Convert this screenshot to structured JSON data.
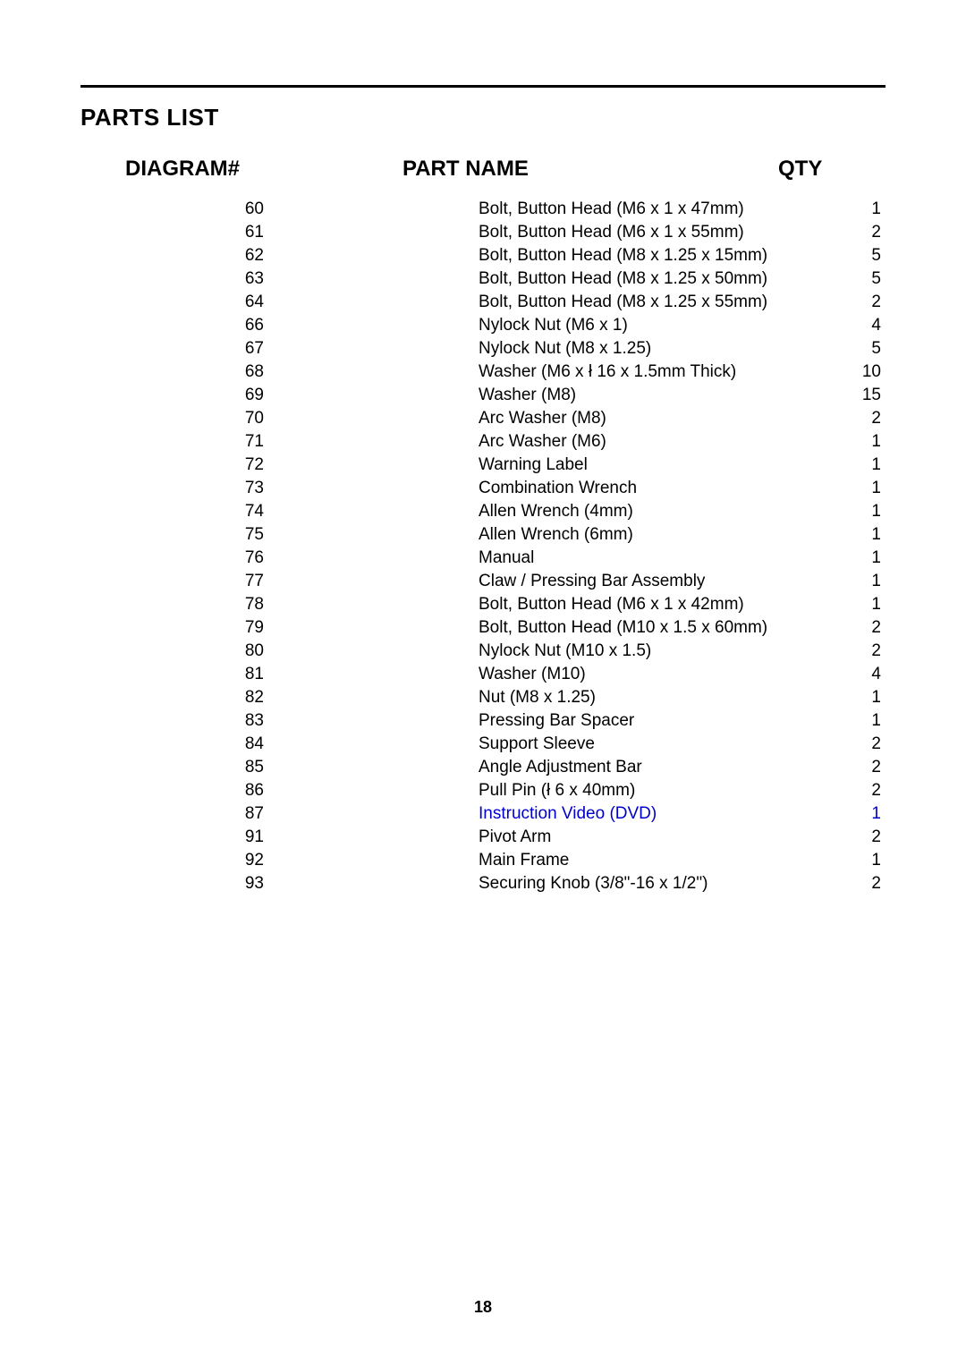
{
  "section_title": "PARTS LIST",
  "headers": {
    "diagram": "DIAGRAM#",
    "part": "PART NAME",
    "qty": "QTY"
  },
  "page_number": "18",
  "link_color": "#0000cc",
  "rows": [
    {
      "diagram": "60",
      "part": "Bolt, Button Head (M6 x 1 x 47mm)",
      "qty": "1",
      "link": false
    },
    {
      "diagram": "61",
      "part": "Bolt, Button Head (M6 x 1 x 55mm)",
      "qty": "2",
      "link": false
    },
    {
      "diagram": "62",
      "part": "Bolt, Button Head (M8 x 1.25 x 15mm)",
      "qty": "5",
      "link": false
    },
    {
      "diagram": "63",
      "part": "Bolt, Button Head (M8 x 1.25 x 50mm)",
      "qty": "5",
      "link": false
    },
    {
      "diagram": "64",
      "part": "Bolt, Button Head (M8 x 1.25 x 55mm)",
      "qty": "2",
      "link": false
    },
    {
      "diagram": "66",
      "part": "Nylock Nut (M6 x 1)",
      "qty": "4",
      "link": false
    },
    {
      "diagram": "67",
      "part": "Nylock Nut (M8 x 1.25)",
      "qty": "5",
      "link": false
    },
    {
      "diagram": "68",
      "part": "Washer (M6 x ł 16 x 1.5mm Thick)",
      "qty": "10",
      "link": false
    },
    {
      "diagram": "69",
      "part": "Washer (M8)",
      "qty": "15",
      "link": false
    },
    {
      "diagram": "70",
      "part": "Arc Washer (M8)",
      "qty": "2",
      "link": false
    },
    {
      "diagram": "71",
      "part": "Arc Washer (M6)",
      "qty": "1",
      "link": false
    },
    {
      "diagram": "72",
      "part": "Warning Label",
      "qty": "1",
      "link": false
    },
    {
      "diagram": "73",
      "part": "Combination Wrench",
      "qty": "1",
      "link": false
    },
    {
      "diagram": "74",
      "part": "Allen Wrench (4mm)",
      "qty": "1",
      "link": false
    },
    {
      "diagram": "75",
      "part": "Allen Wrench (6mm)",
      "qty": "1",
      "link": false
    },
    {
      "diagram": "76",
      "part": "Manual",
      "qty": "1",
      "link": false
    },
    {
      "diagram": "77",
      "part": "Claw / Pressing Bar Assembly",
      "qty": "1",
      "link": false
    },
    {
      "diagram": "78",
      "part": "Bolt, Button Head (M6 x 1 x 42mm)",
      "qty": "1",
      "link": false
    },
    {
      "diagram": "79",
      "part": "Bolt, Button Head (M10 x 1.5 x 60mm)",
      "qty": "2",
      "link": false
    },
    {
      "diagram": "80",
      "part": "Nylock Nut (M10 x 1.5)",
      "qty": "2",
      "link": false
    },
    {
      "diagram": "81",
      "part": "Washer (M10)",
      "qty": "4",
      "link": false
    },
    {
      "diagram": "82",
      "part": "Nut (M8 x 1.25)",
      "qty": "1",
      "link": false
    },
    {
      "diagram": "83",
      "part": "Pressing Bar Spacer",
      "qty": "1",
      "link": false
    },
    {
      "diagram": "84",
      "part": "Support Sleeve",
      "qty": "2",
      "link": false
    },
    {
      "diagram": "85",
      "part": "Angle Adjustment Bar",
      "qty": "2",
      "link": false
    },
    {
      "diagram": "86",
      "part": "Pull Pin (ł 6 x 40mm)",
      "qty": "2",
      "link": false
    },
    {
      "diagram": "87",
      "part": "Instruction Video (DVD)",
      "qty": "1",
      "link": true
    },
    {
      "diagram": "91",
      "part": "Pivot Arm",
      "qty": "2",
      "link": false
    },
    {
      "diagram": "92",
      "part": "Main Frame",
      "qty": "1",
      "link": false
    },
    {
      "diagram": "93",
      "part": "Securing Knob (3/8\"-16 x 1/2\")",
      "qty": "2",
      "link": false
    }
  ]
}
